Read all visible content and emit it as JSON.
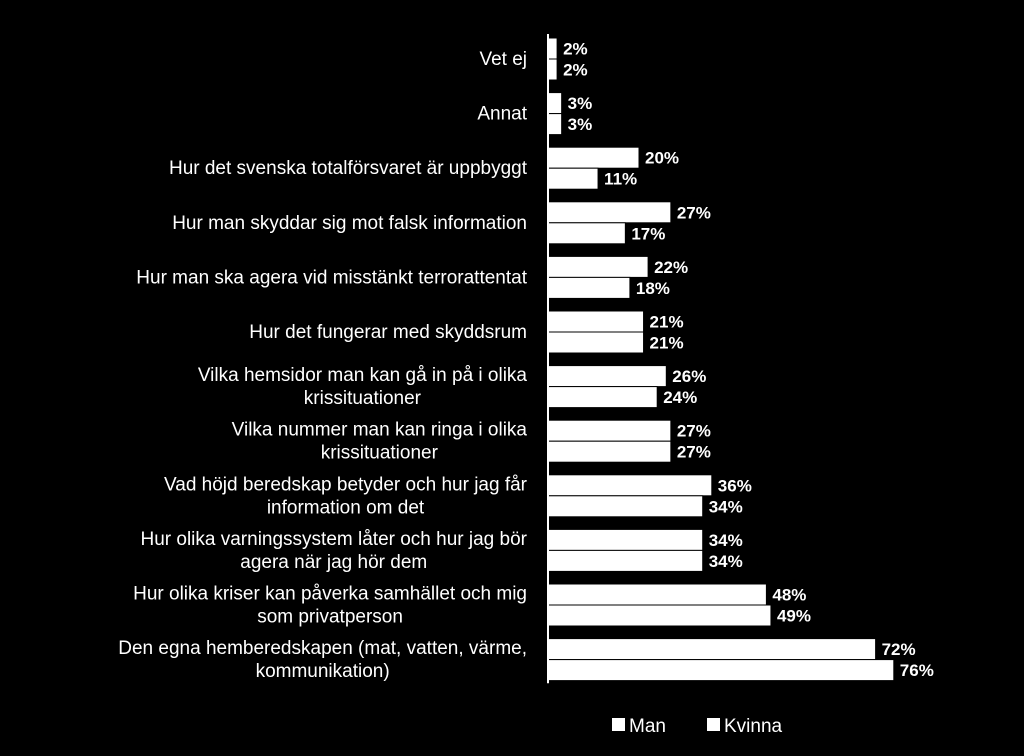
{
  "colors": {
    "background": "#000000",
    "bars": "#ffffff",
    "bar_outline": "#000000",
    "text": "#ffffff"
  },
  "chart_data": {
    "type": "bar",
    "orientation": "horizontal",
    "title": "",
    "xlabel": "",
    "ylabel": "",
    "xlim": [
      0,
      100
    ],
    "grid": false,
    "legend_position": "bottom-right",
    "categories": [
      "Vet ej",
      "Annat",
      "Hur det svenska totalförsvaret är uppbyggt",
      "Hur man skyddar sig mot falsk information",
      "Hur man ska agera vid misstänkt terrorattentat",
      "Hur det fungerar med skyddsrum",
      "Vilka hemsidor man kan gå in på i olika\nkrissituationer",
      "Vilka nummer man kan ringa i olika\nkrissituationer",
      "Vad höjd beredskap betyder och hur jag får\ninformation om det",
      "Hur olika varningssystem låter och hur jag bör\nagera när jag hör dem",
      "Hur olika kriser kan påverka samhället och mig\nsom privatperson",
      "Den egna hemberedskapen (mat, vatten, värme,\nkommunikation)"
    ],
    "series": [
      {
        "name": "Man",
        "values": [
          2,
          3,
          20,
          27,
          22,
          21,
          26,
          27,
          36,
          34,
          48,
          72
        ]
      },
      {
        "name": "Kvinna",
        "values": [
          2,
          3,
          11,
          17,
          18,
          21,
          24,
          27,
          34,
          34,
          49,
          76
        ]
      }
    ],
    "value_labels": [
      [
        "2%",
        "2%"
      ],
      [
        "3%",
        "3%"
      ],
      [
        "20%",
        "11%"
      ],
      [
        "27%",
        "17%"
      ],
      [
        "22%",
        "18%"
      ],
      [
        "21%",
        "21%"
      ],
      [
        "26%",
        "24%"
      ],
      [
        "27%",
        "27%"
      ],
      [
        "36%",
        "34%"
      ],
      [
        "34%",
        "34%"
      ],
      [
        "48%",
        "49%"
      ],
      [
        "72%",
        "76%"
      ]
    ]
  }
}
